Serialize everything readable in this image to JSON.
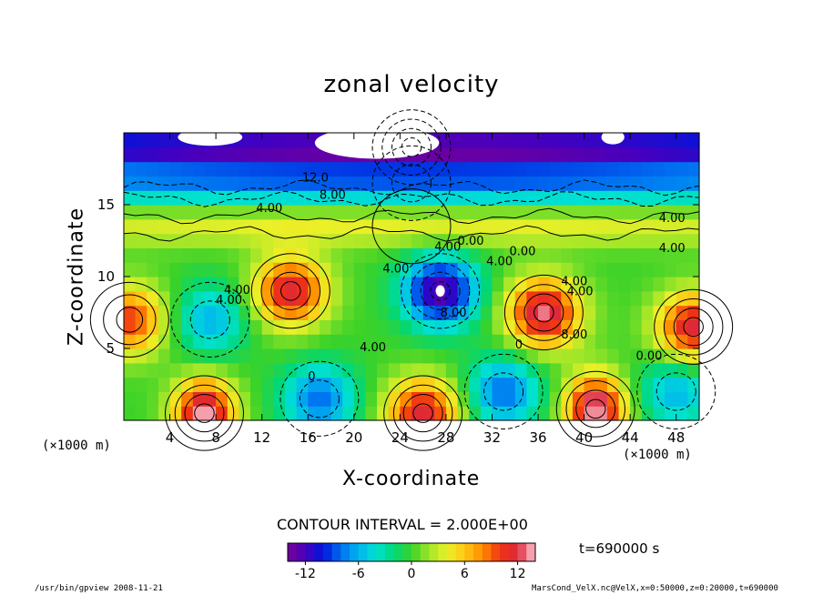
{
  "chart_data": {
    "type": "heatmap",
    "title": "zonal velocity",
    "xlabel": "X-coordinate",
    "ylabel": "Z-coordinate",
    "x_unit_left": "(×1000 m)",
    "x_unit_right": "(×1000 m)",
    "x_range": [
      0,
      50
    ],
    "y_range": [
      0,
      20
    ],
    "x_ticks": [
      4,
      8,
      12,
      16,
      20,
      24,
      28,
      32,
      36,
      40,
      44,
      48
    ],
    "y_ticks": [
      5,
      10,
      15
    ],
    "contour_interval_text": "CONTOUR INTERVAL = 2.000E+00",
    "colorbar_ticks": [
      -12,
      -6,
      0,
      6,
      12
    ],
    "colorbar_range": [
      -14,
      14
    ],
    "contour_labels": [
      "12.0",
      "8.00",
      "4.00",
      "4.00",
      "4.00",
      "4.00",
      "4.00",
      "0.00",
      "4.00",
      "4.00",
      "8.00",
      "8.00",
      "4.00",
      "4.00",
      "0.00",
      "4.00",
      "4.00",
      "0",
      "0",
      "0.00"
    ],
    "features": [
      {
        "name": "upper jet",
        "x": 25,
        "y": 19,
        "value": -14
      },
      {
        "name": "upper band",
        "x": 25,
        "y": 16.5,
        "value": -8
      },
      {
        "name": "mid band",
        "x": 25,
        "y": 13.5,
        "value": 4
      },
      {
        "name": "vortex 1",
        "x": 0.5,
        "y": 7,
        "value": 10
      },
      {
        "name": "vortex 2",
        "x": 7.5,
        "y": 7,
        "value": -6
      },
      {
        "name": "vortex 3",
        "x": 14.5,
        "y": 9,
        "value": 12
      },
      {
        "name": "vortex 4",
        "x": 27.5,
        "y": 9,
        "value": -13
      },
      {
        "name": "vortex 5",
        "x": 36.5,
        "y": 7.5,
        "value": 13
      },
      {
        "name": "vortex 6",
        "x": 49.5,
        "y": 6.5,
        "value": 12
      },
      {
        "name": "surface 1",
        "x": 7,
        "y": 0.5,
        "value": 14
      },
      {
        "name": "surface 2",
        "x": 26,
        "y": 0.5,
        "value": 12
      },
      {
        "name": "surface 3",
        "x": 41,
        "y": 0.8,
        "value": 14
      },
      {
        "name": "surface 4",
        "x": 17,
        "y": 1.5,
        "value": -8
      },
      {
        "name": "surface 5",
        "x": 33,
        "y": 2,
        "value": -8
      },
      {
        "name": "surface 6",
        "x": 48,
        "y": 2,
        "value": -6
      }
    ]
  },
  "info": {
    "time_label": "t=690000  s",
    "footer_left": "/usr/bin/gpview  2008-11-21",
    "footer_right": "MarsCond_VelX.nc@VelX,x=0:50000,z=0:20000,t=690000"
  }
}
